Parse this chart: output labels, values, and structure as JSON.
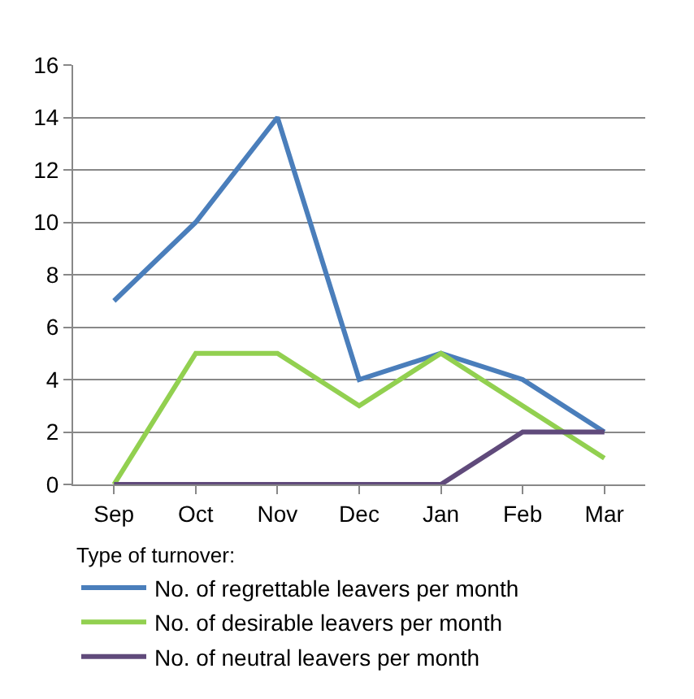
{
  "chart_data": {
    "type": "line",
    "categories": [
      "Sep",
      "Oct",
      "Nov",
      "Dec",
      "Jan",
      "Feb",
      "Mar"
    ],
    "series": [
      {
        "name": "No. of regrettable leavers per month",
        "color": "#4a7ebb",
        "values": [
          7,
          10,
          14,
          4,
          5,
          4,
          2
        ]
      },
      {
        "name": "No. of desirable leavers per month",
        "color": "#92d050",
        "values": [
          0,
          5,
          5,
          3,
          5,
          3,
          1
        ]
      },
      {
        "name": "No. of neutral leavers per month",
        "color": "#604a7b",
        "values": [
          0,
          0,
          0,
          0,
          0,
          2,
          2
        ]
      }
    ],
    "ylim": [
      0,
      16
    ],
    "yticks": [
      0,
      2,
      4,
      6,
      8,
      10,
      12,
      14,
      16
    ],
    "grid": "y",
    "legend": "bottom",
    "legend_title": "Type of turnover:",
    "marker": "none",
    "line_style": "solid"
  }
}
